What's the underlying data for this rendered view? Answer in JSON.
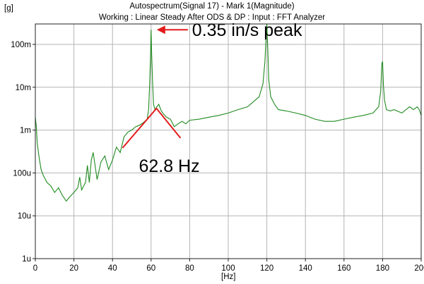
{
  "chart_data": {
    "type": "line",
    "title": "Autospectrum(Signal 17) -  Mark 1(Magnitude)",
    "subtitle": "Working : Linear Steady After ODS & DP : Input : FFT Analyzer",
    "ylabel": "[g]",
    "xlabel": "[Hz]",
    "y_scale": "log",
    "ylim": [
      1e-06,
      0.3
    ],
    "xlim": [
      0,
      200
    ],
    "x_ticks": [
      0,
      20,
      40,
      60,
      80,
      100,
      120,
      140,
      160,
      180,
      200
    ],
    "y_ticks": [
      {
        "value": 0.1,
        "label": "100m"
      },
      {
        "value": 0.01,
        "label": "10m"
      },
      {
        "value": 0.001,
        "label": "1m"
      },
      {
        "value": 0.0001,
        "label": "100u"
      },
      {
        "value": 1e-05,
        "label": "10u"
      },
      {
        "value": 1e-06,
        "label": "1u"
      }
    ],
    "grid": true,
    "series": [
      {
        "color": "#1f8a1f",
        "x": [
          0,
          0.5,
          1,
          2,
          3,
          4,
          6,
          8,
          10,
          12,
          14,
          16,
          18,
          20,
          22,
          23,
          24,
          26,
          27,
          28,
          29,
          30,
          32,
          34,
          36,
          38,
          40,
          42,
          44,
          46,
          48,
          50,
          52,
          54,
          56,
          58,
          58.7,
          59.2,
          59.7,
          60,
          60.3,
          60.8,
          61.3,
          62,
          63,
          64,
          65,
          66,
          68,
          70,
          72,
          74,
          76,
          78,
          80,
          85,
          90,
          95,
          100,
          105,
          110,
          114,
          116,
          118,
          119,
          119.6,
          120,
          120.4,
          121,
          122,
          124,
          126,
          130,
          135,
          140,
          145,
          150,
          155,
          160,
          165,
          170,
          175,
          178,
          179,
          179.6,
          180,
          180.4,
          181,
          182,
          184,
          186,
          190,
          194,
          196,
          198,
          199,
          200
        ],
        "y": [
          0.002,
          0.0012,
          0.0005,
          0.00022,
          0.00012,
          9e-05,
          6e-05,
          5e-05,
          3.5e-05,
          4.5e-05,
          3e-05,
          2.2e-05,
          2.8e-05,
          3.5e-05,
          4.5e-05,
          8e-05,
          4e-05,
          6e-05,
          0.00015,
          6e-05,
          0.0002,
          0.0003,
          7e-05,
          0.00018,
          0.00025,
          0.00012,
          0.0002,
          0.0004,
          0.0003,
          0.0007,
          0.0009,
          0.001,
          0.0012,
          0.0013,
          0.0015,
          0.0018,
          0.003,
          0.01,
          0.05,
          0.22,
          0.06,
          0.012,
          0.004,
          0.003,
          0.0035,
          0.004,
          0.003,
          0.0025,
          0.002,
          0.0018,
          0.0012,
          0.0014,
          0.0016,
          0.0014,
          0.0017,
          0.0018,
          0.002,
          0.0022,
          0.0025,
          0.003,
          0.0035,
          0.005,
          0.006,
          0.012,
          0.04,
          0.15,
          0.3,
          0.1,
          0.015,
          0.006,
          0.004,
          0.003,
          0.0028,
          0.0025,
          0.0022,
          0.0018,
          0.0016,
          0.0016,
          0.0018,
          0.002,
          0.0022,
          0.0025,
          0.0035,
          0.008,
          0.035,
          0.04,
          0.012,
          0.005,
          0.003,
          0.0028,
          0.003,
          0.0025,
          0.0035,
          0.003,
          0.0035,
          0.003,
          0.0022
        ]
      }
    ],
    "annotations": [
      {
        "id": "peak",
        "text": "0.35 in/s peak",
        "color": "#e31b1b",
        "x": 60,
        "y": 0.22
      },
      {
        "id": "freq",
        "text": "62.8 Hz",
        "color": "#e31b1b",
        "x": 62.8,
        "y": 0.0032
      }
    ]
  }
}
